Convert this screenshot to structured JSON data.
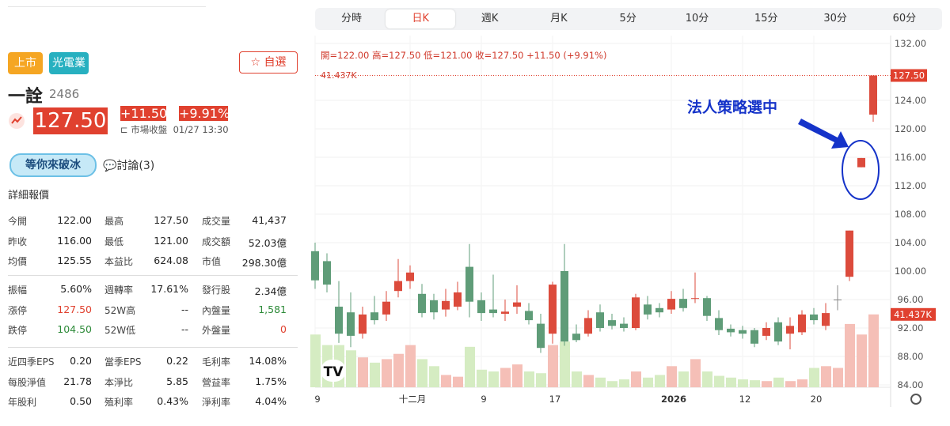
{
  "stock": {
    "tags": [
      "上市",
      "光電業"
    ],
    "watch": "自選",
    "name": "一詮",
    "code": "2486",
    "price": "127.50",
    "change": "+11.50",
    "change_pct": "+9.91%",
    "status": "市場收盤",
    "time": "01/27 13:30",
    "icebreak": "等你來破冰",
    "discuss": "討論(3)"
  },
  "quote": {
    "title": "詳細報價",
    "groups": [
      [
        [
          {
            "l": "今開",
            "v": "122.00"
          },
          {
            "l": "最高",
            "v": "127.50"
          },
          {
            "l": "成交量",
            "v": "41,437"
          }
        ],
        [
          {
            "l": "昨收",
            "v": "116.00"
          },
          {
            "l": "最低",
            "v": "121.00"
          },
          {
            "l": "成交額",
            "v": "52.03億"
          }
        ],
        [
          {
            "l": "均價",
            "v": "125.55"
          },
          {
            "l": "本益比",
            "v": "624.08"
          },
          {
            "l": "市值",
            "v": "298.30億"
          }
        ]
      ],
      [
        [
          {
            "l": "振幅",
            "v": "5.60%"
          },
          {
            "l": "週轉率",
            "v": "17.61%"
          },
          {
            "l": "發行股",
            "v": "2.34億"
          }
        ],
        [
          {
            "l": "漲停",
            "v": "127.50",
            "c": "#e0412f"
          },
          {
            "l": "52W高",
            "v": "--"
          },
          {
            "l": "內盤量",
            "v": "1,581",
            "c": "#2e8b3a"
          }
        ],
        [
          {
            "l": "跌停",
            "v": "104.50",
            "c": "#2e8b3a"
          },
          {
            "l": "52W低",
            "v": "--"
          },
          {
            "l": "外盤量",
            "v": "0",
            "c": "#e0412f"
          }
        ]
      ],
      [
        [
          {
            "l": "近四季EPS",
            "v": "0.20"
          },
          {
            "l": "當季EPS",
            "v": "0.22"
          },
          {
            "l": "毛利率",
            "v": "14.08%"
          }
        ],
        [
          {
            "l": "每股淨值",
            "v": "21.78"
          },
          {
            "l": "本淨比",
            "v": "5.85"
          },
          {
            "l": "營益率",
            "v": "1.75%"
          }
        ],
        [
          {
            "l": "年股利",
            "v": "0.50"
          },
          {
            "l": "殖利率",
            "v": "0.43%"
          },
          {
            "l": "淨利率",
            "v": "4.04%"
          }
        ]
      ]
    ]
  },
  "tabs": {
    "items": [
      "分時",
      "日K",
      "週K",
      "月K",
      "5分",
      "10分",
      "15分",
      "30分",
      "60分"
    ],
    "selected": 1
  },
  "chart": {
    "type": "candlestick",
    "info": "開=122.00 高=127.50 低=121.00 收=127.50 +11.50 (+9.91%)",
    "volume_label": "41.437K",
    "last_price_label": "127.50",
    "last_volume_label": "41.437K",
    "annotation": "法人策略選中",
    "ylim": [
      84,
      132
    ],
    "yticks": [
      {
        "value": 84,
        "label": "84.00"
      },
      {
        "value": 88,
        "label": "88.00"
      },
      {
        "value": 92,
        "label": "92.00"
      },
      {
        "value": 96,
        "label": "96.00"
      },
      {
        "value": 100,
        "label": "100.00"
      },
      {
        "value": 104,
        "label": "104.00"
      },
      {
        "value": 108,
        "label": "108.00"
      },
      {
        "value": 112,
        "label": "112.00"
      },
      {
        "value": 116,
        "label": "116.00"
      },
      {
        "value": 120,
        "label": "120.00"
      },
      {
        "value": 124,
        "label": "124.00"
      },
      {
        "value": 132,
        "label": "132.00"
      }
    ],
    "vlim": [
      0,
      200000
    ],
    "up_color": "#dc4b3c",
    "down_color": "#5f9c78",
    "vol_up_color": "#f5bfb7",
    "vol_down_color": "#d5ecc2",
    "categories": [
      "9",
      null,
      null,
      null,
      null,
      null,
      null,
      null,
      "十二月",
      null,
      null,
      null,
      null,
      null,
      "9",
      null,
      null,
      null,
      null,
      null,
      "17",
      null,
      null,
      null,
      null,
      null,
      null,
      null,
      null,
      null,
      "2026",
      null,
      null,
      null,
      null,
      null,
      "12",
      null,
      null,
      null,
      null,
      null,
      "20",
      null,
      null,
      null,
      null,
      null
    ],
    "open": [
      102.8,
      101.4,
      95.0,
      94.2,
      91.2,
      94.2,
      93.9,
      97.2,
      98.6,
      96.8,
      95.9,
      94.6,
      95.0,
      100.6,
      95.9,
      94.6,
      94.0,
      95.0,
      94.4,
      92.6,
      91.2,
      100.0,
      91.2,
      91.2,
      94.2,
      93.1,
      92.6,
      92.0,
      95.3,
      94.8,
      94.6,
      96.1,
      96.1,
      96.2,
      93.4,
      91.9,
      91.7,
      91.7,
      90.9,
      92.8,
      91.2,
      91.4,
      93.9,
      92.3,
      96.0,
      99.2,
      114.6,
      122.0
    ],
    "high": [
      104.0,
      102.5,
      98.6,
      97.0,
      95.0,
      96.5,
      97.2,
      101.7,
      100.8,
      98.2,
      96.8,
      97.5,
      98.5,
      103.8,
      97.0,
      99.5,
      96.0,
      98.0,
      95.5,
      94.0,
      98.5,
      103.8,
      92.5,
      94.5,
      95.3,
      94.0,
      93.5,
      96.8,
      96.5,
      95.5,
      97.2,
      97.5,
      99.8,
      96.5,
      94.5,
      92.5,
      92.3,
      92.0,
      92.8,
      93.5,
      93.5,
      94.5,
      94.8,
      95.5,
      98.0,
      105.7,
      115.9,
      127.5
    ],
    "low": [
      97.5,
      97.0,
      89.9,
      89.3,
      90.5,
      92.5,
      93.0,
      96.3,
      97.5,
      93.5,
      93.2,
      93.6,
      94.5,
      93.5,
      93.0,
      93.5,
      93.0,
      94.0,
      92.5,
      88.5,
      89.8,
      89.5,
      90.0,
      90.8,
      91.5,
      91.8,
      91.5,
      91.7,
      93.2,
      93.5,
      94.0,
      94.3,
      95.5,
      93.0,
      91.0,
      90.8,
      90.5,
      89.3,
      90.3,
      89.6,
      89.0,
      91.0,
      92.5,
      91.7,
      94.5,
      98.6,
      114.6,
      121.0
    ],
    "close": [
      98.7,
      98.1,
      91.2,
      90.9,
      93.9,
      93.1,
      95.7,
      98.6,
      99.8,
      94.1,
      94.2,
      95.8,
      97.0,
      95.7,
      94.1,
      94.1,
      94.3,
      95.6,
      93.1,
      89.2,
      98.1,
      90.1,
      90.3,
      93.4,
      92.0,
      92.3,
      92.0,
      96.3,
      93.9,
      94.2,
      96.1,
      94.8,
      96.2,
      93.7,
      91.7,
      91.4,
      91.2,
      89.8,
      92.0,
      90.1,
      92.3,
      93.9,
      93.1,
      94.1,
      96.0,
      105.7,
      115.9,
      127.5
    ],
    "volume": [
      30000,
      24000,
      24000,
      21000,
      17000,
      14000,
      16000,
      19000,
      24000,
      16000,
      12000,
      7000,
      6000,
      23000,
      10000,
      9000,
      11000,
      13000,
      9000,
      8000,
      24000,
      26000,
      9000,
      7000,
      5500,
      3500,
      4500,
      9000,
      5500,
      7000,
      12000,
      9000,
      16000,
      9000,
      6500,
      5500,
      4500,
      4000,
      3500,
      5500,
      3500,
      4500,
      11000,
      12000,
      11000,
      36000,
      30000,
      41437
    ]
  }
}
